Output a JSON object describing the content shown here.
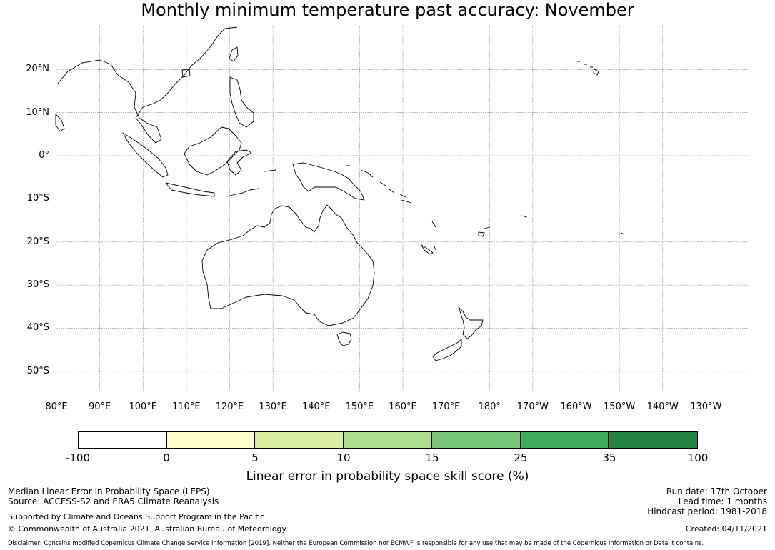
{
  "title": "Monthly minimum temperature past accuracy: November",
  "map": {
    "lat_labels": [
      "20°N",
      "10°N",
      "0°",
      "10°S",
      "20°S",
      "30°S",
      "40°S",
      "50°S"
    ],
    "lat_values": [
      20,
      10,
      0,
      -10,
      -20,
      -30,
      -40,
      -50
    ],
    "lon_labels": [
      "80°E",
      "90°E",
      "100°E",
      "110°E",
      "120°E",
      "130°E",
      "140°E",
      "150°E",
      "160°E",
      "170°E",
      "180°",
      "170°W",
      "160°W",
      "150°W",
      "140°W",
      "130°W"
    ],
    "lon_values": [
      80,
      90,
      100,
      110,
      120,
      130,
      140,
      150,
      160,
      170,
      180,
      190,
      200,
      210,
      220,
      230
    ],
    "extent": {
      "lon_min": 80,
      "lon_max": 240,
      "lat_min": -55,
      "lat_max": 30
    },
    "coastline_color": "#000000",
    "grid_color": "#999999",
    "grid": true
  },
  "colorbar": {
    "ticks": [
      "-100",
      "0",
      "5",
      "10",
      "15",
      "25",
      "35",
      "100"
    ],
    "colors": [
      "#ffffff",
      "#ffffcc",
      "#d9f0a3",
      "#addd8e",
      "#78c679",
      "#41ab5d",
      "#238443"
    ],
    "label": "Linear error in probability space skill score (%)"
  },
  "info": {
    "left_line1": "Median Linear Error in Probability Space (LEPS)",
    "left_line2": "Source: ACCESS-S2 and ERA5 Climate Reanalysis",
    "left_line3": "Supported by Climate and Oceans Support Program in the Pacific",
    "left_line4": "© Commonwealth of Australia 2021, Australian Bureau of Meteorology",
    "run_date": "Run date: 17th October",
    "lead_time": "Lead time: 1 months",
    "hindcast": "Hindcast period: 1981-2018",
    "created": "Created: 04/11/2021",
    "disclaimer": "Disclaimer: Contains modified Copernicus Climate Change Service Information [2019]. Neither the European Commission nor ECMWF is responsible for any use that may be made of the Copernicus Information or Data it contains."
  }
}
